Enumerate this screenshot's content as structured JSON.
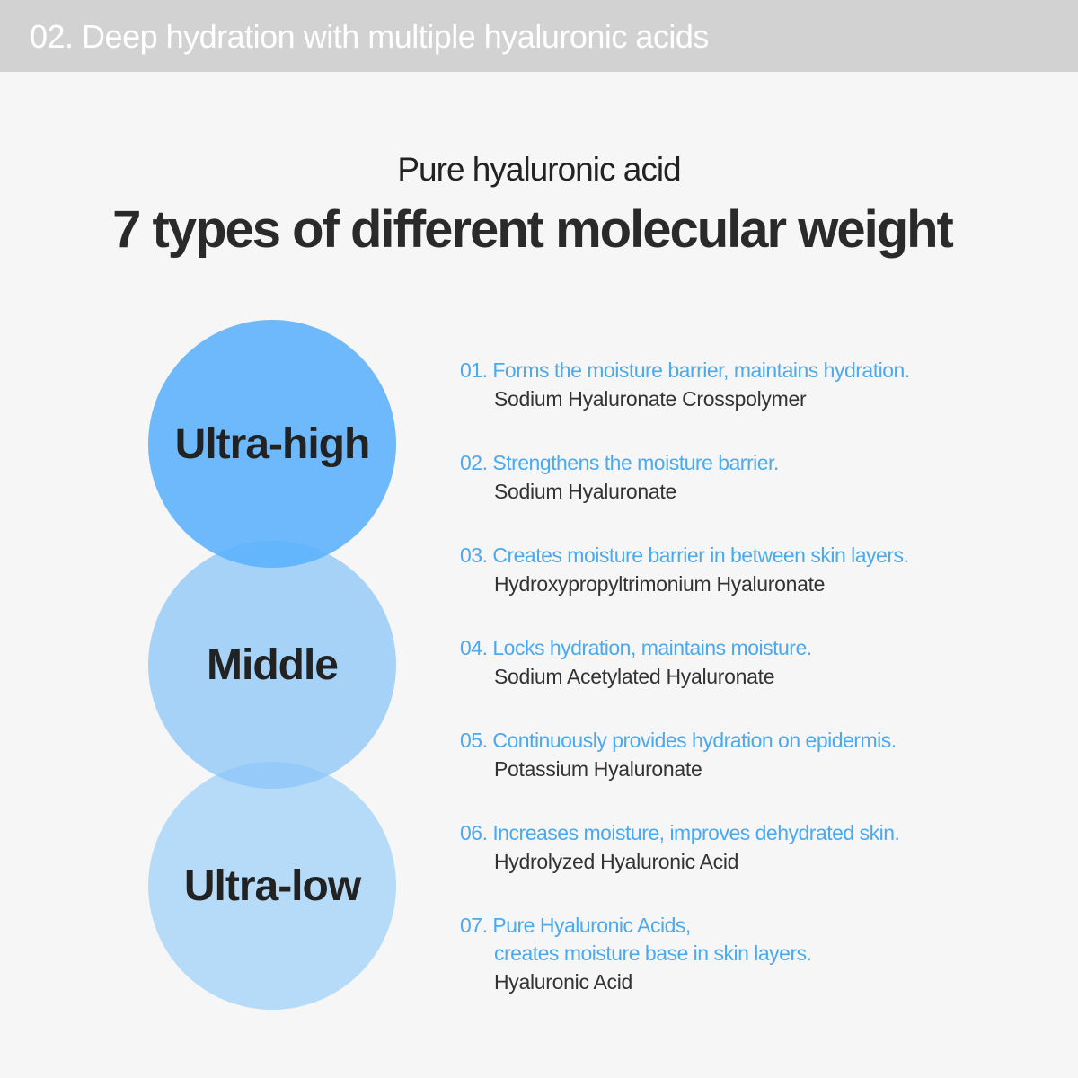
{
  "banner": {
    "title": "02. Deep hydration with multiple hyaluronic acids"
  },
  "heading": {
    "subtitle": "Pure hyaluronic acid",
    "title": "7 types of different molecular weight"
  },
  "circles": [
    {
      "label": "Ultra-high",
      "color": "#6bb8fb"
    },
    {
      "label": "Middle",
      "color": "#a2d0f9"
    },
    {
      "label": "Ultra-low",
      "color": "#b3dafa"
    }
  ],
  "items": [
    {
      "benefit": "01. Forms the moisture barrier, maintains hydration.",
      "ingredient": "Sodium Hyaluronate Crosspolymer"
    },
    {
      "benefit": "02. Strengthens the moisture barrier.",
      "ingredient": "Sodium Hyaluronate"
    },
    {
      "benefit": "03. Creates moisture barrier in between skin layers.",
      "ingredient": "Hydroxypropyltrimonium Hyaluronate"
    },
    {
      "benefit": "04. Locks hydration, maintains moisture.",
      "ingredient": "Sodium Acetylated Hyaluronate"
    },
    {
      "benefit": "05. Continuously provides hydration on epidermis.",
      "ingredient": "Potassium Hyaluronate"
    },
    {
      "benefit": "06. Increases moisture, improves dehydrated skin.",
      "ingredient": "Hydrolyzed Hyaluronic Acid"
    },
    {
      "benefit": "07. Pure Hyaluronic Acids,",
      "benefit_cont": "creates moisture base in skin layers.",
      "ingredient": "Hyaluronic Acid"
    }
  ],
  "colors": {
    "accent": "#4aa9ef",
    "banner": "#d2d2d2",
    "background": "#f6f6f6"
  }
}
